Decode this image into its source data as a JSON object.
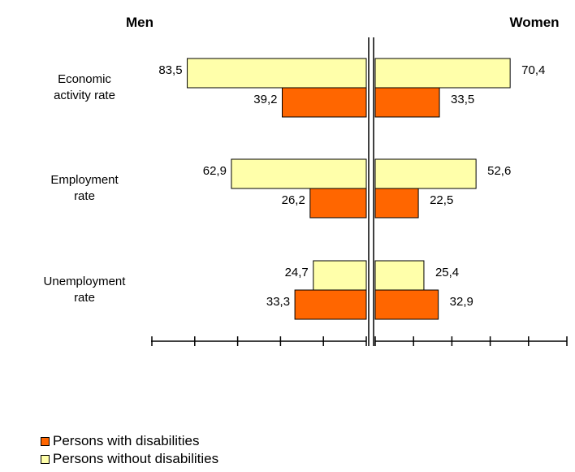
{
  "chart_data": {
    "type": "bar",
    "orientation": "horizontal",
    "layout": "back-to-back",
    "panels": [
      {
        "side": "left",
        "title": "Men"
      },
      {
        "side": "right",
        "title": "Women"
      }
    ],
    "categories": [
      {
        "lines": [
          "Economic",
          "activity rate"
        ]
      },
      {
        "lines": [
          "Employment",
          "rate"
        ]
      },
      {
        "lines": [
          "Unemployment",
          "rate"
        ]
      }
    ],
    "series": [
      {
        "name": "Persons without disabilities",
        "color": "#FFFFAA",
        "men": [
          83.5,
          62.9,
          24.7
        ],
        "women": [
          70.4,
          52.6,
          25.4
        ],
        "men_labels": [
          "83,5",
          "62,9",
          "24,7"
        ],
        "women_labels": [
          "70,4",
          "52,6",
          "25,4"
        ]
      },
      {
        "name": "Persons with disabilities",
        "color": "#FF6600",
        "men": [
          39.2,
          26.2,
          33.3
        ],
        "women": [
          33.5,
          22.5,
          32.9
        ],
        "men_labels": [
          "39,2",
          "26,2",
          "33,3"
        ],
        "women_labels": [
          "33,5",
          "22,5",
          "32,9"
        ]
      }
    ],
    "xlim": [
      0,
      100
    ],
    "grid": false,
    "legend_position": "bottom-left"
  }
}
